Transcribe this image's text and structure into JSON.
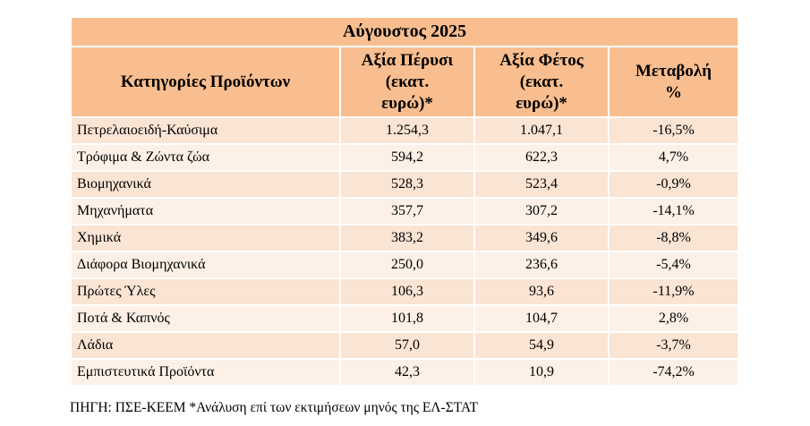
{
  "title": "Αύγουστος  2025",
  "headers": {
    "category": "Κατηγορίες Προϊόντων",
    "last_year": "Αξία Πέρυσι\n(εκατ.\nευρώ)*",
    "this_year": "Αξία Φέτος\n(εκατ.\nευρώ)*",
    "change": "Μεταβολή\n%"
  },
  "rows": [
    {
      "category": "Πετρελαιοειδή-Καύσιμα",
      "last_year": "1.254,3",
      "this_year": "1.047,1",
      "change": "-16,5%"
    },
    {
      "category": "Τρόφιμα & Ζώντα ζώα",
      "last_year": "594,2",
      "this_year": "622,3",
      "change": "4,7%"
    },
    {
      "category": "Βιομηχανικά",
      "last_year": "528,3",
      "this_year": "523,4",
      "change": "-0,9%"
    },
    {
      "category": "Μηχανήματα",
      "last_year": "357,7",
      "this_year": "307,2",
      "change": "-14,1%"
    },
    {
      "category": "Χημικά",
      "last_year": "383,2",
      "this_year": "349,6",
      "change": "-8,8%"
    },
    {
      "category": "Διάφορα Βιομηχανικά",
      "last_year": "250,0",
      "this_year": "236,6",
      "change": "-5,4%"
    },
    {
      "category": "Πρώτες Ύλες",
      "last_year": "106,3",
      "this_year": "93,6",
      "change": "-11,9%"
    },
    {
      "category": "Ποτά & Καπνός",
      "last_year": "101,8",
      "this_year": "104,7",
      "change": "2,8%"
    },
    {
      "category": "Λάδια",
      "last_year": "57,0",
      "this_year": "54,9",
      "change": "-3,7%"
    },
    {
      "category": "Εμπιστευτικά Προϊόντα",
      "last_year": "42,3",
      "this_year": "10,9",
      "change": "-74,2%"
    }
  ],
  "footnote": "ΠΗΓΗ: ΠΣΕ-ΚΕΕΜ *Ανάλυση επί των εκτιμήσεων μηνός της ΕΛ-ΣΤΑΤ",
  "colors": {
    "header_bg": "#f9be8f",
    "row_odd_bg": "#fae4d3",
    "row_even_bg": "#fdf0e6"
  }
}
